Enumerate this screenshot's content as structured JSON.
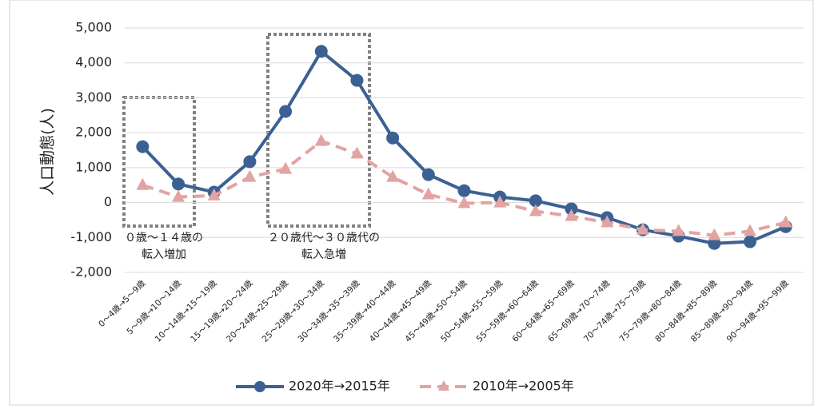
{
  "chart_data": {
    "type": "line",
    "ylabel": "人口動態(人)",
    "categories": [
      "0～4歳→5～9歳",
      "5～9歳→10～14歳",
      "10～14歳→15～19歳",
      "15～19歳→20～24歳",
      "20～24歳→25～29歳",
      "25～29歳→30～34歳",
      "30～34歳→35～39歳",
      "35～39歳→40～44歳",
      "40～44歳→45～49歳",
      "45～49歳→50～54歳",
      "50～54歳→55～59歳",
      "55～59歳→60～64歳",
      "60～64歳→65～69歳",
      "65～69歳→70～74歳",
      "70～74歳→75～79歳",
      "75～79歳→80～84歳",
      "80～84歳→85～89歳",
      "85～89歳→90～94歳",
      "90～94歳→95～99歳"
    ],
    "series": [
      {
        "name": "2020年→2015年",
        "color": "#3b6193",
        "marker": "circle",
        "dash": false,
        "values": [
          1600,
          530,
          300,
          1170,
          2610,
          4330,
          3500,
          1850,
          800,
          340,
          160,
          50,
          -180,
          -430,
          -780,
          -960,
          -1170,
          -1120,
          -690
        ]
      },
      {
        "name": "2010年→2005年",
        "color": "#e3a3a3",
        "marker": "triangle",
        "dash": true,
        "values": [
          500,
          160,
          200,
          730,
          960,
          1760,
          1400,
          730,
          230,
          -20,
          0,
          -250,
          -390,
          -570,
          -780,
          -820,
          -940,
          -820,
          -570
        ]
      }
    ],
    "ylim": [
      -2000,
      5000
    ],
    "yticks": [
      {
        "value": -2000,
        "label": "-2,000"
      },
      {
        "value": -1000,
        "label": "-1,000"
      },
      0,
      {
        "value": 1000,
        "label": "1,000"
      },
      {
        "value": 2000,
        "label": "2,000"
      },
      {
        "value": 3000,
        "label": "3,000"
      },
      {
        "value": 4000,
        "label": "4,000"
      },
      {
        "value": 5000,
        "label": "5,000"
      }
    ],
    "grid": true,
    "legend": "bottom",
    "annotations": [
      {
        "lines": [
          "０歳～１４歳の",
          "転入増加"
        ]
      },
      {
        "lines": [
          "２０歳代～３０歳代の",
          "転入急増"
        ]
      }
    ]
  }
}
